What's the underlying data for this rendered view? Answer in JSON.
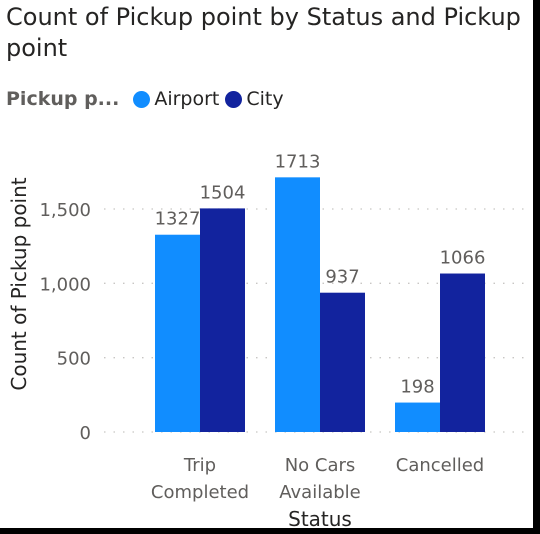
{
  "chart_data": {
    "type": "bar",
    "title": "Count of Pickup point by Status and Pickup point",
    "legend_title": "Pickup p...",
    "legend_position": "top-left",
    "xlabel": "Status",
    "ylabel": "Count of Pickup point",
    "categories": [
      "Trip Completed",
      "No Cars Available",
      "Cancelled"
    ],
    "category_lines": [
      [
        "Trip",
        "Completed"
      ],
      [
        "No Cars",
        "Available"
      ],
      [
        "Cancelled"
      ]
    ],
    "series": [
      {
        "name": "Airport",
        "color": "#118dff",
        "values": [
          1327,
          1713,
          198
        ]
      },
      {
        "name": "City",
        "color": "#12239e",
        "values": [
          1504,
          937,
          1066
        ]
      }
    ],
    "yticks": [
      0,
      500,
      1000,
      1500
    ],
    "ytick_labels": [
      "0",
      "500",
      "1,000",
      "1,500"
    ],
    "ylim": [
      0,
      1800
    ],
    "grid": true,
    "data_labels": true
  }
}
